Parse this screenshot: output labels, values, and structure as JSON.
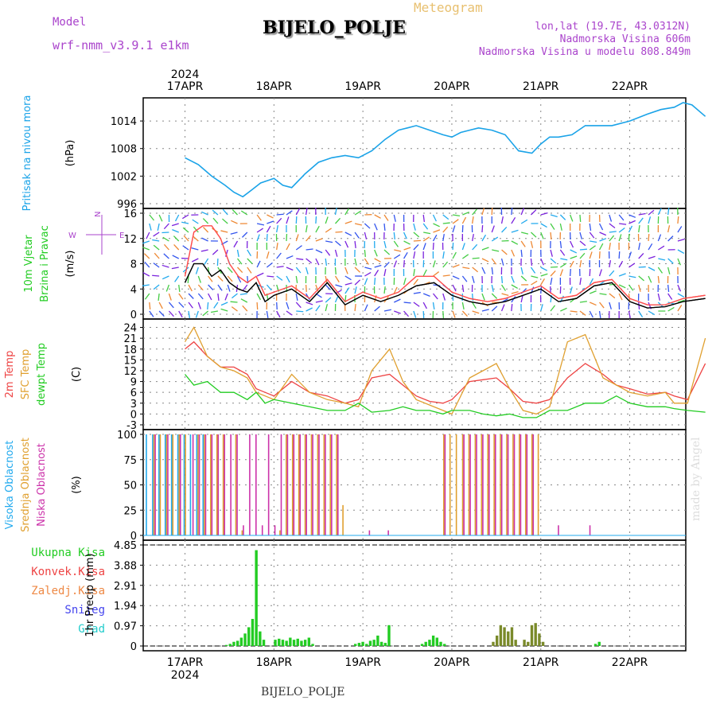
{
  "header": {
    "model_label": "Model",
    "model_name": "wrf-nmm_v3.9.1 e1km",
    "product": "Meteogram",
    "station": "BIJELO_POLJE",
    "lonlat": "lon,lat (19.7E, 43.0312N)",
    "altitude": "Nadmorska Visina 606m",
    "model_altitude": "Nadmorska Visina u modelu 808.849m"
  },
  "footer": {
    "station": "BIJELO_POLJE",
    "credit": "made by Angel"
  },
  "colors": {
    "pressure": "#1aa3e8",
    "wind_speed": "#000000",
    "gust": "#ff4d4d",
    "t2m": "#ee4444",
    "tsfc": "#e0a030",
    "dewpt": "#22cc22",
    "cloud_high": "#22aaee",
    "cloud_mid": "#e0a030",
    "cloud_low": "#cc33aa",
    "precip_total": "#22cc22",
    "precip_conv": "#ee4444",
    "precip_frozen": "#ee8844",
    "snow": "#4444ee",
    "grad": "#22cccc",
    "frame": "#000000",
    "grid": "#888888"
  },
  "chart_data": [
    {
      "type": "line",
      "panel": "pressure",
      "ylabel": [
        "Pritisak na nivou mora",
        "(hPa)"
      ],
      "ylabel_colors": [
        "#1aa3e8",
        "#000000"
      ],
      "yticks": [
        996,
        1002,
        1008,
        1014
      ],
      "ylim": [
        996,
        1018
      ],
      "x_top_labels": [
        "17APR",
        "18APR",
        "19APR",
        "20APR",
        "21APR",
        "22APR"
      ],
      "year": "2024",
      "series": [
        {
          "key": "pressure",
          "x": [
            0,
            0.15,
            0.3,
            0.45,
            0.55,
            0.65,
            0.75,
            0.85,
            1.0,
            1.1,
            1.2,
            1.35,
            1.5,
            1.65,
            1.8,
            1.95,
            2.1,
            2.25,
            2.4,
            2.5,
            2.6,
            2.75,
            2.9,
            3.0,
            3.1,
            3.2,
            3.3,
            3.45,
            3.6,
            3.75,
            3.9,
            4.0,
            4.1,
            4.2,
            4.35,
            4.5,
            4.65,
            4.8,
            5.0,
            5.2,
            5.35,
            5.5,
            5.6,
            5.7,
            5.85
          ],
          "values": [
            1006,
            1004.5,
            1002,
            1000,
            998.5,
            997.5,
            999,
            1000.5,
            1001.5,
            1000,
            999.5,
            1002.5,
            1005,
            1006,
            1006.5,
            1006,
            1007.5,
            1010,
            1012,
            1012.5,
            1013,
            1012,
            1011,
            1010.5,
            1011.5,
            1012,
            1012.5,
            1012,
            1011,
            1007.5,
            1007,
            1009,
            1010.5,
            1010.5,
            1011,
            1013,
            1013,
            1013,
            1014,
            1015.5,
            1016.5,
            1017,
            1018,
            1017.5,
            1015
          ]
        }
      ]
    },
    {
      "type": "line",
      "panel": "wind",
      "ylabel": [
        "10m Vjetar",
        "Brzina i Pravac",
        "(m/s)"
      ],
      "ylabel_colors": [
        "#22cc22",
        "#22cc22",
        "#000000"
      ],
      "compass": [
        "N",
        "W",
        "E",
        "S"
      ],
      "yticks": [
        0,
        4,
        8,
        12,
        16
      ],
      "ylim": [
        0,
        16
      ],
      "series": [
        {
          "key": "wind_speed",
          "x": [
            0,
            0.1,
            0.2,
            0.3,
            0.4,
            0.5,
            0.6,
            0.7,
            0.8,
            0.9,
            1.0,
            1.2,
            1.4,
            1.6,
            1.8,
            2.0,
            2.2,
            2.4,
            2.6,
            2.8,
            3.0,
            3.2,
            3.4,
            3.6,
            3.8,
            4.0,
            4.2,
            4.4,
            4.6,
            4.8,
            5.0,
            5.2,
            5.4,
            5.6,
            5.85
          ],
          "values": [
            5,
            8,
            8,
            6,
            7,
            5,
            4,
            3.5,
            5,
            2,
            3,
            4,
            2,
            5,
            1.5,
            3,
            2,
            3,
            4.5,
            5,
            3,
            2,
            1.5,
            2,
            3,
            4,
            2,
            2.5,
            4.5,
            5,
            2,
            1,
            1.2,
            2,
            2.5
          ]
        },
        {
          "key": "gust",
          "x": [
            0,
            0.1,
            0.2,
            0.3,
            0.4,
            0.5,
            0.6,
            0.7,
            0.8,
            0.9,
            1.0,
            1.2,
            1.4,
            1.6,
            1.8,
            2.0,
            2.2,
            2.4,
            2.6,
            2.8,
            3.0,
            3.2,
            3.4,
            3.6,
            3.8,
            4.0,
            4.2,
            4.4,
            4.6,
            4.8,
            5.0,
            5.2,
            5.4,
            5.6,
            5.85
          ],
          "values": [
            6,
            13,
            14,
            14,
            12,
            8,
            6,
            5,
            6,
            3,
            3.5,
            4.5,
            2.5,
            5.5,
            2,
            3.5,
            2.5,
            3.5,
            6,
            6,
            3.5,
            2.5,
            2,
            2.5,
            3.5,
            4.5,
            2.5,
            3,
            5,
            5.5,
            2.5,
            1.5,
            1.5,
            2.5,
            3
          ]
        }
      ]
    },
    {
      "type": "line",
      "panel": "temperature",
      "ylabel": [
        "2m Temp",
        "SFC Temp",
        "dewpt Temp",
        "(C)"
      ],
      "ylabel_colors": [
        "#ee4444",
        "#e0a030",
        "#22cc22",
        "#000000"
      ],
      "yticks": [
        -3,
        0,
        3,
        6,
        9,
        12,
        15,
        18,
        21,
        24
      ],
      "ylim": [
        -3,
        25
      ],
      "series": [
        {
          "key": "t2m",
          "x": [
            0,
            0.1,
            0.25,
            0.4,
            0.55,
            0.7,
            0.8,
            0.9,
            1.0,
            1.2,
            1.4,
            1.6,
            1.8,
            1.95,
            2.1,
            2.3,
            2.45,
            2.6,
            2.75,
            2.9,
            3.0,
            3.2,
            3.35,
            3.5,
            3.65,
            3.8,
            3.95,
            4.1,
            4.3,
            4.5,
            4.7,
            4.85,
            5.0,
            5.2,
            5.4,
            5.5,
            5.65,
            5.85
          ],
          "values": [
            18,
            20,
            16,
            13,
            13,
            11,
            7,
            6,
            5,
            9,
            6,
            5,
            3,
            4,
            10,
            11,
            8,
            5,
            3.5,
            3,
            4,
            9,
            9.5,
            10,
            7,
            3.5,
            3,
            4,
            10,
            14,
            11,
            8,
            7,
            5.5,
            6,
            5,
            4,
            14
          ]
        },
        {
          "key": "tsfc",
          "x": [
            0,
            0.1,
            0.25,
            0.4,
            0.55,
            0.7,
            0.8,
            0.9,
            1.0,
            1.2,
            1.4,
            1.6,
            1.8,
            1.95,
            2.1,
            2.3,
            2.45,
            2.6,
            2.75,
            2.9,
            3.0,
            3.2,
            3.35,
            3.5,
            3.65,
            3.8,
            3.95,
            4.1,
            4.3,
            4.5,
            4.7,
            4.85,
            5.0,
            5.2,
            5.4,
            5.5,
            5.65,
            5.85
          ],
          "values": [
            20,
            24,
            16,
            13,
            12,
            10,
            6,
            5,
            4,
            11,
            6,
            4,
            3,
            2,
            12,
            18,
            9,
            4,
            2.5,
            1,
            0,
            10,
            12,
            14,
            7,
            1,
            0,
            2,
            20,
            22,
            10,
            8,
            6,
            5,
            6,
            3,
            3,
            21
          ]
        },
        {
          "key": "dewpt",
          "x": [
            0,
            0.1,
            0.25,
            0.4,
            0.55,
            0.7,
            0.8,
            0.9,
            1.0,
            1.2,
            1.4,
            1.6,
            1.8,
            1.95,
            2.1,
            2.3,
            2.45,
            2.6,
            2.75,
            2.9,
            3.0,
            3.2,
            3.35,
            3.5,
            3.65,
            3.8,
            3.95,
            4.1,
            4.3,
            4.5,
            4.7,
            4.85,
            5.0,
            5.2,
            5.4,
            5.5,
            5.65,
            5.85
          ],
          "values": [
            11,
            8,
            9,
            6,
            6,
            4,
            6,
            3,
            4,
            3,
            2,
            1,
            1,
            3,
            0.5,
            1,
            2,
            1,
            1,
            0,
            1,
            1,
            0,
            -0.5,
            0,
            -1,
            -1,
            1,
            1,
            3,
            3,
            5,
            3,
            2,
            2,
            1.5,
            1,
            0.5
          ]
        }
      ]
    },
    {
      "type": "bar",
      "panel": "clouds",
      "ylabel": [
        "Visoka Oblacnost",
        "Srednja Oblacnost",
        "Niska Oblacnost",
        "(%)"
      ],
      "ylabel_colors": [
        "#22aaee",
        "#e0a030",
        "#cc33aa",
        "#000000"
      ],
      "yticks": [
        0,
        25,
        50,
        75,
        100
      ],
      "ylim": [
        0,
        100
      ],
      "step_hours": 2,
      "series": [
        {
          "key": "cloud_high",
          "values": [
            100,
            100,
            100,
            100,
            100,
            100,
            100,
            100,
            100,
            100,
            0,
            0,
            0,
            0,
            0,
            0,
            0,
            0,
            0,
            0,
            0,
            0,
            0,
            0,
            0,
            0,
            0,
            0,
            0,
            0,
            0,
            0,
            0,
            0,
            0,
            0,
            0,
            0,
            0,
            0,
            0,
            0,
            0,
            0,
            0,
            0,
            0,
            0,
            0,
            0,
            0,
            0,
            0,
            0,
            0,
            0,
            0,
            0,
            0,
            0,
            0,
            0,
            0,
            0,
            0,
            0,
            0,
            0,
            0,
            0,
            0
          ]
        },
        {
          "key": "cloud_mid",
          "values": [
            0,
            100,
            100,
            100,
            100,
            100,
            100,
            0,
            100,
            100,
            100,
            100,
            100,
            0,
            100,
            5,
            0,
            0,
            0,
            0,
            0,
            5,
            100,
            100,
            100,
            100,
            100,
            100,
            100,
            100,
            100,
            30,
            0,
            0,
            0,
            0,
            0,
            0,
            0,
            0,
            0,
            0,
            0,
            0,
            0,
            0,
            0,
            100,
            100,
            100,
            100,
            100,
            100,
            100,
            100,
            100,
            100,
            100,
            100,
            100,
            100,
            100,
            100,
            0,
            0,
            0,
            0,
            0,
            0,
            0,
            0
          ]
        },
        {
          "key": "cloud_low",
          "values": [
            0,
            100,
            0,
            100,
            0,
            100,
            0,
            100,
            100,
            100,
            100,
            100,
            100,
            100,
            100,
            10,
            100,
            100,
            10,
            100,
            10,
            100,
            100,
            100,
            100,
            100,
            100,
            100,
            100,
            100,
            100,
            0,
            0,
            0,
            0,
            5,
            0,
            0,
            5,
            0,
            0,
            0,
            0,
            0,
            0,
            0,
            0,
            100,
            0,
            0,
            100,
            100,
            100,
            100,
            100,
            100,
            100,
            100,
            100,
            100,
            100,
            100,
            0,
            0,
            0,
            10,
            0,
            0,
            0,
            0,
            10
          ]
        }
      ]
    },
    {
      "type": "bar",
      "panel": "precip",
      "ylabel": [
        "1hr Precip (mm)"
      ],
      "ylabel_colors": [
        "#000000"
      ],
      "legend": [
        "Ukupna Kisa",
        "Konvek.Kisa",
        "Zaledj.Kisa",
        "Snijeg",
        "Grad"
      ],
      "legend_colors": [
        "#22cc22",
        "#ee4444",
        "#ee8844",
        "#4444ee",
        "#22cccc"
      ],
      "yticks": [
        0,
        0.97,
        1.94,
        2.91,
        3.88,
        4.85
      ],
      "ylim": [
        0,
        4.85
      ],
      "x_bottom_labels": [
        "17APR",
        "18APR",
        "19APR",
        "20APR",
        "21APR",
        "22APR"
      ],
      "year": "2024",
      "events": [
        {
          "day": 0.45,
          "values": [
            0.05,
            0.1,
            0.2,
            0.25,
            0.4,
            0.6,
            0.9,
            1.3,
            4.6,
            0.7,
            0.3
          ]
        },
        {
          "day": 1.0,
          "values": [
            0.3,
            0.35,
            0.3,
            0.25,
            0.4,
            0.3,
            0.35,
            0.25,
            0.3,
            0.4,
            0.1
          ]
        },
        {
          "day": 1.9,
          "values": [
            0.1,
            0.15,
            0.2,
            0.1,
            0.25,
            0.3,
            0.5,
            0.2,
            0.15,
            1.0
          ]
        },
        {
          "day": 2.65,
          "values": [
            0.1,
            0.2,
            0.3,
            0.5,
            0.4,
            0.2,
            0.1
          ]
        },
        {
          "day": 3.45,
          "values": [
            0.2,
            0.5,
            1.0,
            0.9,
            0.7,
            0.9,
            0.3
          ]
        },
        {
          "day": 3.8,
          "values": [
            0.3,
            0.2,
            1.0,
            1.1,
            0.6,
            0.2
          ]
        },
        {
          "day": 4.6,
          "values": [
            0.1,
            0.2
          ]
        }
      ]
    }
  ]
}
